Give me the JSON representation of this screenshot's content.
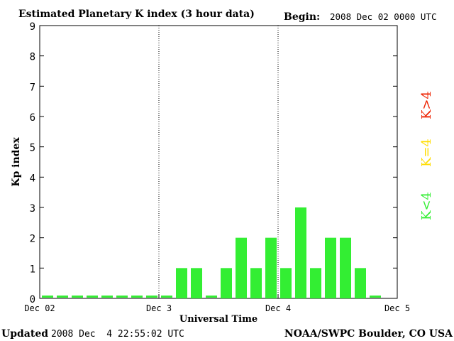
{
  "chart_data": {
    "type": "bar",
    "title": "Estimated Planetary K index (3 hour data)",
    "begin_label": "Begin:",
    "begin_value": "2008 Dec 02 0000 UTC",
    "xlabel": "Universal Time",
    "ylabel": "Kp index",
    "ylim": [
      0,
      9
    ],
    "yticks": [
      "0",
      "1",
      "2",
      "3",
      "4",
      "5",
      "6",
      "7",
      "8",
      "9"
    ],
    "xlim_days": [
      0,
      3
    ],
    "xticks": [
      {
        "day": 0,
        "label": "Dec 02"
      },
      {
        "day": 1,
        "label": "Dec 3"
      },
      {
        "day": 2,
        "label": "Dec 4"
      },
      {
        "day": 3,
        "label": "Dec 5"
      }
    ],
    "day_separators": [
      1,
      2
    ],
    "interval_hours": 3,
    "values": [
      0,
      0,
      0,
      0,
      0,
      0,
      0,
      0,
      0,
      1,
      1,
      0,
      1,
      2,
      1,
      2,
      1,
      3,
      1,
      2,
      2,
      1,
      0
    ],
    "grid": false,
    "legend": [
      {
        "label": "K<4",
        "color": "#33ee33"
      },
      {
        "label": "K=4",
        "color": "#ffdd00"
      },
      {
        "label": "K>4",
        "color": "#ee2200"
      }
    ],
    "legend_placement": "right",
    "bar_color": "#33ee33"
  },
  "footer": {
    "updated_label": "Updated",
    "updated_value": "2008 Dec  4 22:55:02 UTC",
    "credit": "NOAA/SWPC Boulder, CO USA"
  },
  "colors": {
    "low": "#33ee33",
    "mid": "#ffdd00",
    "high": "#ee2200"
  }
}
